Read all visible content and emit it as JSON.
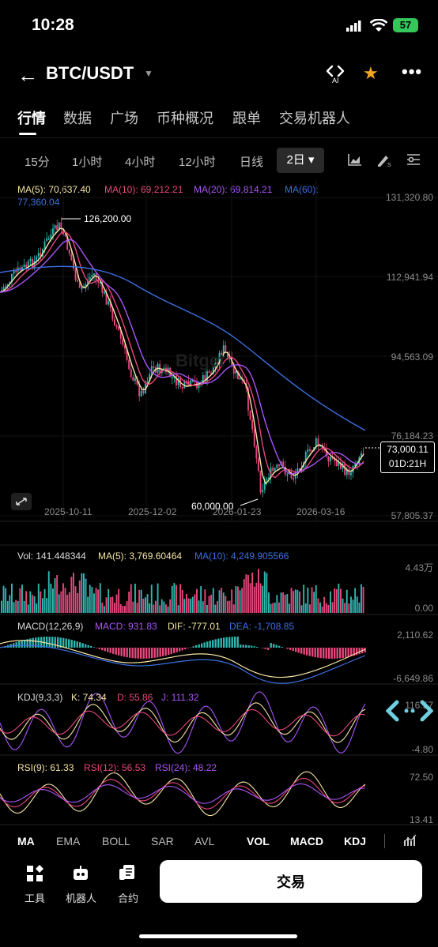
{
  "status_bar": {
    "time": "10:28",
    "battery": "57"
  },
  "header": {
    "pair": "BTC/USDT",
    "ai_label": "AI"
  },
  "tabs": [
    {
      "label": "行情"
    },
    {
      "label": "数据"
    },
    {
      "label": "广场"
    },
    {
      "label": "币种概况"
    },
    {
      "label": "跟单"
    },
    {
      "label": "交易机器人"
    }
  ],
  "intervals": [
    {
      "label": "15分"
    },
    {
      "label": "1小时"
    },
    {
      "label": "4小时"
    },
    {
      "label": "12小时"
    },
    {
      "label": "日线"
    }
  ],
  "interval_selected": "2日",
  "legend": {
    "ma5": "MA(5): 70,637.40",
    "ma10": "MA(10): 69,212.21",
    "ma20": "MA(20): 69,814.21",
    "ma60_a": "MA(60):",
    "ma60_b": "77,360.04"
  },
  "price_axis": [
    "131,320.80",
    "112,941.94",
    "94,563.09",
    "76,184.23",
    "57,805.37"
  ],
  "current_price": {
    "price": "73,000.11",
    "countdown": "01D:21H"
  },
  "annotations": {
    "high": "126,200.00",
    "low": "60,000.00"
  },
  "dates": [
    "2025-10-11",
    "2025-12-02",
    "2026-01-23",
    "2026-03-16"
  ],
  "watermark": "Bitget",
  "vol": {
    "label": "Vol: 141.448344",
    "ma5": "MA(5): 3,769.60464",
    "ma10": "MA(10): 4,249.905566",
    "axis_top": "4.43万",
    "axis_bottom": "0.00"
  },
  "macd": {
    "label": "MACD(12,26,9)",
    "macd": "MACD: 931.83",
    "dif": "DIF: -777.01",
    "dea": "DEA: -1,708.85",
    "axis_top": "2,110.62",
    "axis_bottom": "-6,649.86"
  },
  "kdj": {
    "label": "KDJ(9,3,3)",
    "k": "K: 74.34",
    "d": "D: 55.86",
    "j": "J: 111.32",
    "axis_top": "116.57",
    "axis_bottom": "-4.80"
  },
  "rsi": {
    "label": "RSI(9): 61.33",
    "r12": "RSI(12): 56.53",
    "r24": "RSI(24): 48.22",
    "axis_top": "72.50",
    "axis_bottom": "13.41"
  },
  "indicator_tabs": [
    {
      "label": "MA"
    },
    {
      "label": "EMA"
    },
    {
      "label": "BOLL"
    },
    {
      "label": "SAR"
    },
    {
      "label": "AVL"
    },
    {
      "label": "VOL"
    },
    {
      "label": "MACD"
    },
    {
      "label": "KDJ"
    }
  ],
  "toolbar": {
    "tools": "工具",
    "robot": "机器人",
    "contract": "合约",
    "trade": "交易"
  },
  "colors": {
    "up": "#2eb7b0",
    "down": "#e8467c",
    "ma5": "#f5e6a3",
    "ma10": "#e8467c",
    "ma20": "#a855f7",
    "ma60": "#3b6fe0"
  },
  "chart_data": {
    "type": "candlestick",
    "price_range": [
      57805.37,
      131320.8
    ],
    "x_dates": [
      "2025-10-11",
      "2025-12-02",
      "2026-01-23",
      "2026-03-16"
    ],
    "high": 126200.0,
    "low": 60000.0,
    "last": 73000.11,
    "ma_series": [
      {
        "name": "MA(5)",
        "value": 70637.4
      },
      {
        "name": "MA(10)",
        "value": 69212.21
      },
      {
        "name": "MA(20)",
        "value": 69814.21
      },
      {
        "name": "MA(60)",
        "value": 77360.04
      }
    ]
  }
}
